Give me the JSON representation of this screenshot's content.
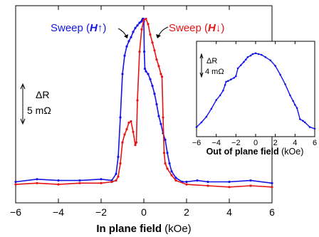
{
  "chart_data": [
    {
      "type": "line",
      "name": "main",
      "xlabel_bold": "In plane field",
      "xlabel_unit": " (kOe)",
      "xlim": [
        -6,
        6
      ],
      "ylim": [
        0,
        15
      ],
      "xticks": [
        -6,
        -4,
        -2,
        0,
        2,
        4,
        6
      ],
      "xtick_labels": [
        "−6",
        "−4",
        "−2",
        "0",
        "2",
        "4",
        "6"
      ],
      "scalebar": {
        "label": "ΔR",
        "value_label": "5 mΩ",
        "value": 5
      },
      "series": [
        {
          "name": "Sweep (H↑)",
          "color": "#1414e6",
          "x": [
            -6.0,
            -5.0,
            -4.0,
            -3.0,
            -2.0,
            -1.5,
            -1.3,
            -1.2,
            -1.1,
            -1.0,
            -0.9,
            -0.8,
            -0.7,
            -0.6,
            -0.5,
            -0.4,
            -0.3,
            -0.2,
            -0.12,
            -0.08,
            -0.05,
            -0.02,
            0.0,
            0.02,
            0.05,
            0.1,
            0.2,
            0.3,
            0.4,
            0.5,
            0.6,
            0.7,
            0.8,
            0.9,
            1.0,
            1.1,
            1.2,
            1.3,
            1.5,
            1.8,
            2.0,
            2.5,
            3.0,
            4.0,
            5.0,
            6.0
          ],
          "y": [
            1.6,
            1.8,
            1.7,
            1.7,
            1.8,
            1.7,
            2.2,
            3.5,
            6.5,
            9.8,
            11.2,
            11.9,
            12.3,
            12.6,
            13.0,
            13.3,
            13.5,
            13.7,
            13.8,
            13.9,
            14.0,
            14.0,
            13.8,
            11.5,
            10.2,
            10.0,
            9.8,
            9.4,
            8.9,
            8.3,
            7.5,
            6.6,
            6.0,
            5.3,
            4.8,
            3.8,
            3.0,
            2.4,
            1.9,
            1.6,
            1.6,
            1.7,
            1.6,
            1.6,
            1.7,
            1.5
          ]
        },
        {
          "name": "Sweep (H↓)",
          "color": "#e61414",
          "x": [
            -6.0,
            -5.0,
            -4.0,
            -3.0,
            -2.0,
            -1.5,
            -1.3,
            -1.2,
            -1.1,
            -1.0,
            -0.9,
            -0.8,
            -0.7,
            -0.6,
            -0.5,
            -0.4,
            -0.35,
            -0.3,
            -0.2,
            -0.1,
            0.0,
            0.1,
            0.2,
            0.3,
            0.4,
            0.5,
            0.6,
            0.7,
            0.8,
            0.85,
            0.9,
            0.95,
            1.0,
            1.1,
            1.3,
            1.5,
            2.0,
            3.0,
            4.0,
            5.0,
            6.0
          ],
          "y": [
            1.4,
            1.5,
            1.4,
            1.5,
            1.5,
            1.6,
            1.7,
            2.0,
            3.0,
            4.6,
            5.2,
            5.6,
            6.1,
            6.2,
            5.4,
            4.4,
            4.6,
            7.8,
            11.5,
            13.2,
            13.9,
            14.0,
            13.6,
            12.8,
            12.2,
            11.6,
            10.9,
            10.4,
            9.8,
            9.6,
            6.5,
            3.8,
            3.0,
            2.6,
            2.1,
            1.7,
            1.4,
            1.3,
            1.2,
            1.3,
            1.2
          ]
        }
      ]
    },
    {
      "type": "line",
      "name": "inset",
      "xlabel_bold": "Out of plane field",
      "xlabel_unit": " (kOe)",
      "xlim": [
        -6,
        6
      ],
      "ylim": [
        0,
        12
      ],
      "xticks": [
        -6,
        -4,
        -2,
        0,
        2,
        4,
        6
      ],
      "xtick_labels": [
        "−6",
        "−4",
        "−2",
        "0",
        "2",
        "4",
        "6"
      ],
      "scalebar": {
        "label": "ΔR",
        "value_label": "4 mΩ",
        "value": 4
      },
      "series": [
        {
          "name": "",
          "color": "#1414e6",
          "x": [
            -6.0,
            -5.5,
            -5.0,
            -4.5,
            -4.0,
            -3.6,
            -3.3,
            -3.1,
            -3.0,
            -2.8,
            -2.5,
            -2.2,
            -2.0,
            -1.8,
            -1.5,
            -1.2,
            -1.0,
            -0.8,
            -0.5,
            -0.3,
            0.0,
            0.3,
            0.6,
            1.0,
            1.5,
            2.0,
            2.5,
            3.0,
            3.5,
            3.8,
            4.0,
            4.2,
            4.5,
            4.8,
            5.0,
            5.5,
            6.0
          ],
          "y": [
            1.2,
            1.8,
            2.5,
            3.5,
            4.6,
            5.2,
            5.8,
            6.5,
            6.9,
            7.0,
            7.2,
            7.4,
            7.6,
            8.6,
            9.0,
            9.4,
            9.7,
            10.0,
            10.2,
            10.4,
            10.5,
            10.4,
            10.3,
            10.0,
            9.6,
            8.9,
            7.8,
            6.6,
            5.2,
            4.5,
            4.0,
            3.6,
            2.2,
            2.0,
            1.8,
            1.2,
            1.0
          ]
        }
      ]
    }
  ],
  "legend": {
    "up_prefix": "Sweep (",
    "up_field": "H",
    "up_arrow": "↑",
    "up_suffix": ")",
    "down_prefix": "Sweep (",
    "down_field": "H",
    "down_arrow": "↓",
    "down_suffix": ")"
  }
}
